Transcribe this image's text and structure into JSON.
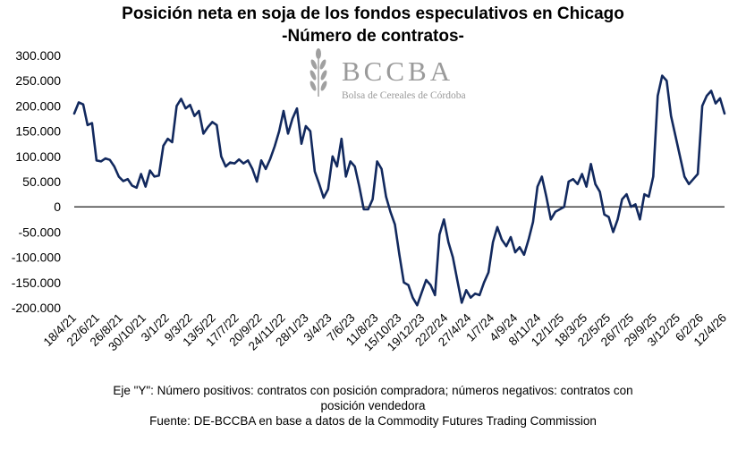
{
  "chart_data": {
    "type": "line",
    "title": "Posición neta en soja de los fondos especulativos en Chicago",
    "subtitle": "-Número de contratos-",
    "xlabel": "",
    "ylabel": "",
    "ylim": [
      -200000,
      300000
    ],
    "y_ticks": [
      "300.000",
      "250.000",
      "200.000",
      "150.000",
      "100.000",
      "50.000",
      "0",
      "-50.000",
      "-100.000",
      "-150.000",
      "-200.000"
    ],
    "y_tick_values": [
      300000,
      250000,
      200000,
      150000,
      100000,
      50000,
      0,
      -50000,
      -100000,
      -150000,
      -200000
    ],
    "x_ticks": [
      "18/4/21",
      "22/6/21",
      "26/8/21",
      "30/10/21",
      "3/1/22",
      "9/3/22",
      "13/5/22",
      "17/7/22",
      "20/9/22",
      "24/11/22",
      "28/1/23",
      "3/4/23",
      "7/6/23",
      "11/8/23",
      "15/10/23",
      "19/12/23",
      "22/2/24",
      "27/4/24",
      "1/7/24",
      "4/9/24",
      "8/11/24",
      "12/1/25",
      "18/3/25",
      "22/5/25",
      "26/7/25",
      "29/9/25",
      "3/12/25",
      "6/2/26",
      "12/4/26"
    ],
    "series": [
      {
        "name": "Posición neta",
        "color": "#12295e",
        "values": [
          185000,
          207000,
          203000,
          162000,
          166000,
          92000,
          90000,
          96000,
          93000,
          80000,
          60000,
          51000,
          55000,
          42000,
          38000,
          65000,
          40000,
          72000,
          60000,
          62000,
          121000,
          135000,
          128000,
          200000,
          214000,
          195000,
          202000,
          180000,
          190000,
          145000,
          158000,
          168000,
          162000,
          100000,
          80000,
          88000,
          86000,
          94000,
          86000,
          92000,
          75000,
          50000,
          92000,
          75000,
          95000,
          120000,
          150000,
          190000,
          145000,
          175000,
          195000,
          125000,
          160000,
          150000,
          70000,
          45000,
          18000,
          35000,
          100000,
          80000,
          135000,
          60000,
          90000,
          80000,
          40000,
          -5000,
          -5000,
          15000,
          90000,
          75000,
          20000,
          -10000,
          -35000,
          -95000,
          -150000,
          -155000,
          -180000,
          -195000,
          -170000,
          -145000,
          -155000,
          -175000,
          -55000,
          -25000,
          -70000,
          -100000,
          -145000,
          -190000,
          -165000,
          -180000,
          -172000,
          -175000,
          -150000,
          -130000,
          -70000,
          -40000,
          -65000,
          -78000,
          -60000,
          -90000,
          -80000,
          -95000,
          -65000,
          -30000,
          40000,
          60000,
          20000,
          -25000,
          -10000,
          -5000,
          0,
          50000,
          55000,
          45000,
          65000,
          40000,
          85000,
          45000,
          30000,
          -15000,
          -20000,
          -50000,
          -25000,
          15000,
          25000,
          0,
          5000,
          -25000,
          25000,
          20000,
          60000,
          220000,
          260000,
          250000,
          180000,
          140000,
          100000,
          60000,
          45000,
          55000,
          65000,
          200000,
          220000,
          230000,
          205000,
          215000,
          185000
        ]
      }
    ],
    "notes": [
      "Eje \"Y\": Número positivos: contratos con posición compradora; números negativos: contratos con",
      "posición vendedora",
      "Fuente: DE-BCCBA en base a datos de la Commodity Futures Trading Commission"
    ],
    "watermark": {
      "name": "BCCBA",
      "tagline": "Bolsa de Cereales de Córdoba"
    }
  }
}
